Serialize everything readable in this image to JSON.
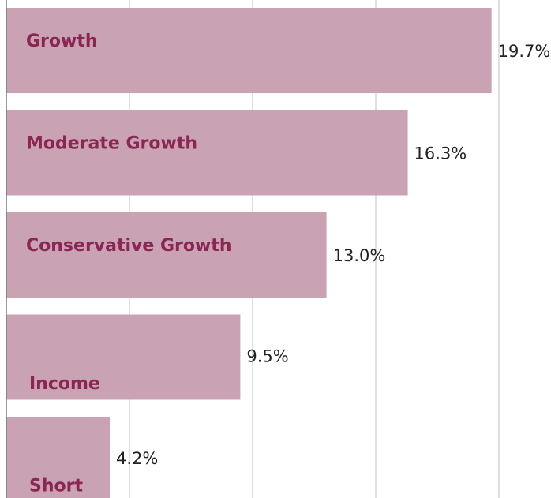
{
  "chart_data": {
    "type": "bar",
    "orientation": "horizontal",
    "categories": [
      "Growth",
      "Moderate Growth",
      "Conservative Growth",
      "Income",
      "Short"
    ],
    "values": [
      19.7,
      16.3,
      13.0,
      9.5,
      4.2
    ],
    "value_labels": [
      "19.7%",
      "16.3%",
      "13.0%",
      "9.5%",
      "4.2%"
    ],
    "unit": "%",
    "xlim": [
      0,
      20
    ],
    "grid": true,
    "legend": "none",
    "bar_color": "#c9a3b4",
    "category_label_color": "#8b2551",
    "value_label_color": "#222222"
  }
}
